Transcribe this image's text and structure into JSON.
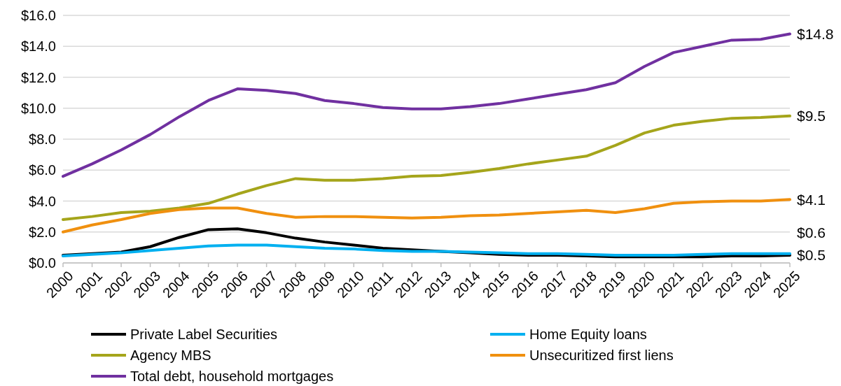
{
  "chart_data": {
    "type": "line",
    "categories": [
      "2000",
      "2001",
      "2002",
      "2003",
      "2004",
      "2005",
      "2006",
      "2007",
      "2008",
      "2009",
      "2010",
      "2011",
      "2012",
      "2013",
      "2014",
      "2015",
      "2016",
      "2017",
      "2018",
      "2019",
      "2020",
      "2021",
      "2022",
      "2023",
      "2024",
      "2025"
    ],
    "series": [
      {
        "name": "Private Label Securities",
        "color": "#000000",
        "values": [
          0.5,
          0.6,
          0.7,
          1.05,
          1.65,
          2.15,
          2.2,
          1.95,
          1.6,
          1.35,
          1.15,
          0.95,
          0.85,
          0.75,
          0.65,
          0.55,
          0.5,
          0.5,
          0.45,
          0.4,
          0.4,
          0.4,
          0.4,
          0.45,
          0.45,
          0.5
        ],
        "value_labels": [
          null,
          null,
          null,
          null,
          null,
          null,
          null,
          null,
          null,
          null,
          null,
          null,
          null,
          null,
          null,
          null,
          null,
          null,
          null,
          null,
          null,
          null,
          null,
          null,
          null,
          "$0.5"
        ]
      },
      {
        "name": "Home Equity loans",
        "color": "#00b0f0",
        "values": [
          0.45,
          0.55,
          0.65,
          0.8,
          0.95,
          1.1,
          1.15,
          1.15,
          1.05,
          0.95,
          0.9,
          0.8,
          0.75,
          0.75,
          0.7,
          0.65,
          0.6,
          0.6,
          0.55,
          0.5,
          0.5,
          0.5,
          0.55,
          0.6,
          0.6,
          0.6
        ],
        "value_labels": [
          null,
          null,
          null,
          null,
          null,
          null,
          null,
          null,
          null,
          null,
          null,
          null,
          null,
          null,
          null,
          null,
          null,
          null,
          null,
          null,
          null,
          null,
          null,
          null,
          null,
          "$0.6"
        ]
      },
      {
        "name": "Agency MBS",
        "color": "#a5a51b",
        "values": [
          2.8,
          3.0,
          3.25,
          3.35,
          3.55,
          3.85,
          4.45,
          5.0,
          5.45,
          5.35,
          5.35,
          5.45,
          5.6,
          5.65,
          5.85,
          6.1,
          6.4,
          6.65,
          6.9,
          7.6,
          8.4,
          8.9,
          9.15,
          9.35,
          9.4,
          9.5
        ],
        "value_labels": [
          null,
          null,
          null,
          null,
          null,
          null,
          null,
          null,
          null,
          null,
          null,
          null,
          null,
          null,
          null,
          null,
          null,
          null,
          null,
          null,
          null,
          null,
          null,
          null,
          null,
          "$9.5"
        ]
      },
      {
        "name": "Unsecuritized first liens",
        "color": "#f0900f",
        "values": [
          2.0,
          2.45,
          2.8,
          3.2,
          3.45,
          3.55,
          3.55,
          3.2,
          2.95,
          3.0,
          3.0,
          2.95,
          2.9,
          2.95,
          3.05,
          3.1,
          3.2,
          3.3,
          3.4,
          3.25,
          3.5,
          3.85,
          3.95,
          4.0,
          4.0,
          4.1
        ],
        "value_labels": [
          null,
          null,
          null,
          null,
          null,
          null,
          null,
          null,
          null,
          null,
          null,
          null,
          null,
          null,
          null,
          null,
          null,
          null,
          null,
          null,
          null,
          null,
          null,
          null,
          null,
          "$4.1"
        ]
      },
      {
        "name": "Total debt, household mortgages",
        "color": "#7030a0",
        "values": [
          5.6,
          6.4,
          7.3,
          8.3,
          9.45,
          10.5,
          11.25,
          11.15,
          10.95,
          10.5,
          10.3,
          10.05,
          9.95,
          9.95,
          10.1,
          10.3,
          10.6,
          10.9,
          11.2,
          11.65,
          12.7,
          13.6,
          14.0,
          14.4,
          14.45,
          14.8
        ],
        "value_labels": [
          null,
          null,
          null,
          null,
          null,
          null,
          null,
          null,
          null,
          null,
          null,
          null,
          null,
          null,
          null,
          null,
          null,
          null,
          null,
          null,
          null,
          null,
          null,
          null,
          null,
          "$14.8"
        ]
      }
    ],
    "ylim": [
      0,
      16
    ],
    "yticks": [
      {
        "value": 0,
        "label": "$0.0"
      },
      {
        "value": 2,
        "label": "$2.0"
      },
      {
        "value": 4,
        "label": "$4.0"
      },
      {
        "value": 6,
        "label": "$6.0"
      },
      {
        "value": 8,
        "label": "$8.0"
      },
      {
        "value": 10,
        "label": "$10.0"
      },
      {
        "value": 12,
        "label": "$12.0"
      },
      {
        "value": 14,
        "label": "$14.0"
      },
      {
        "value": 16,
        "label": "$16.0"
      }
    ],
    "grid": "y",
    "legend": "bottom",
    "marker": "none",
    "line_style": "solid"
  }
}
